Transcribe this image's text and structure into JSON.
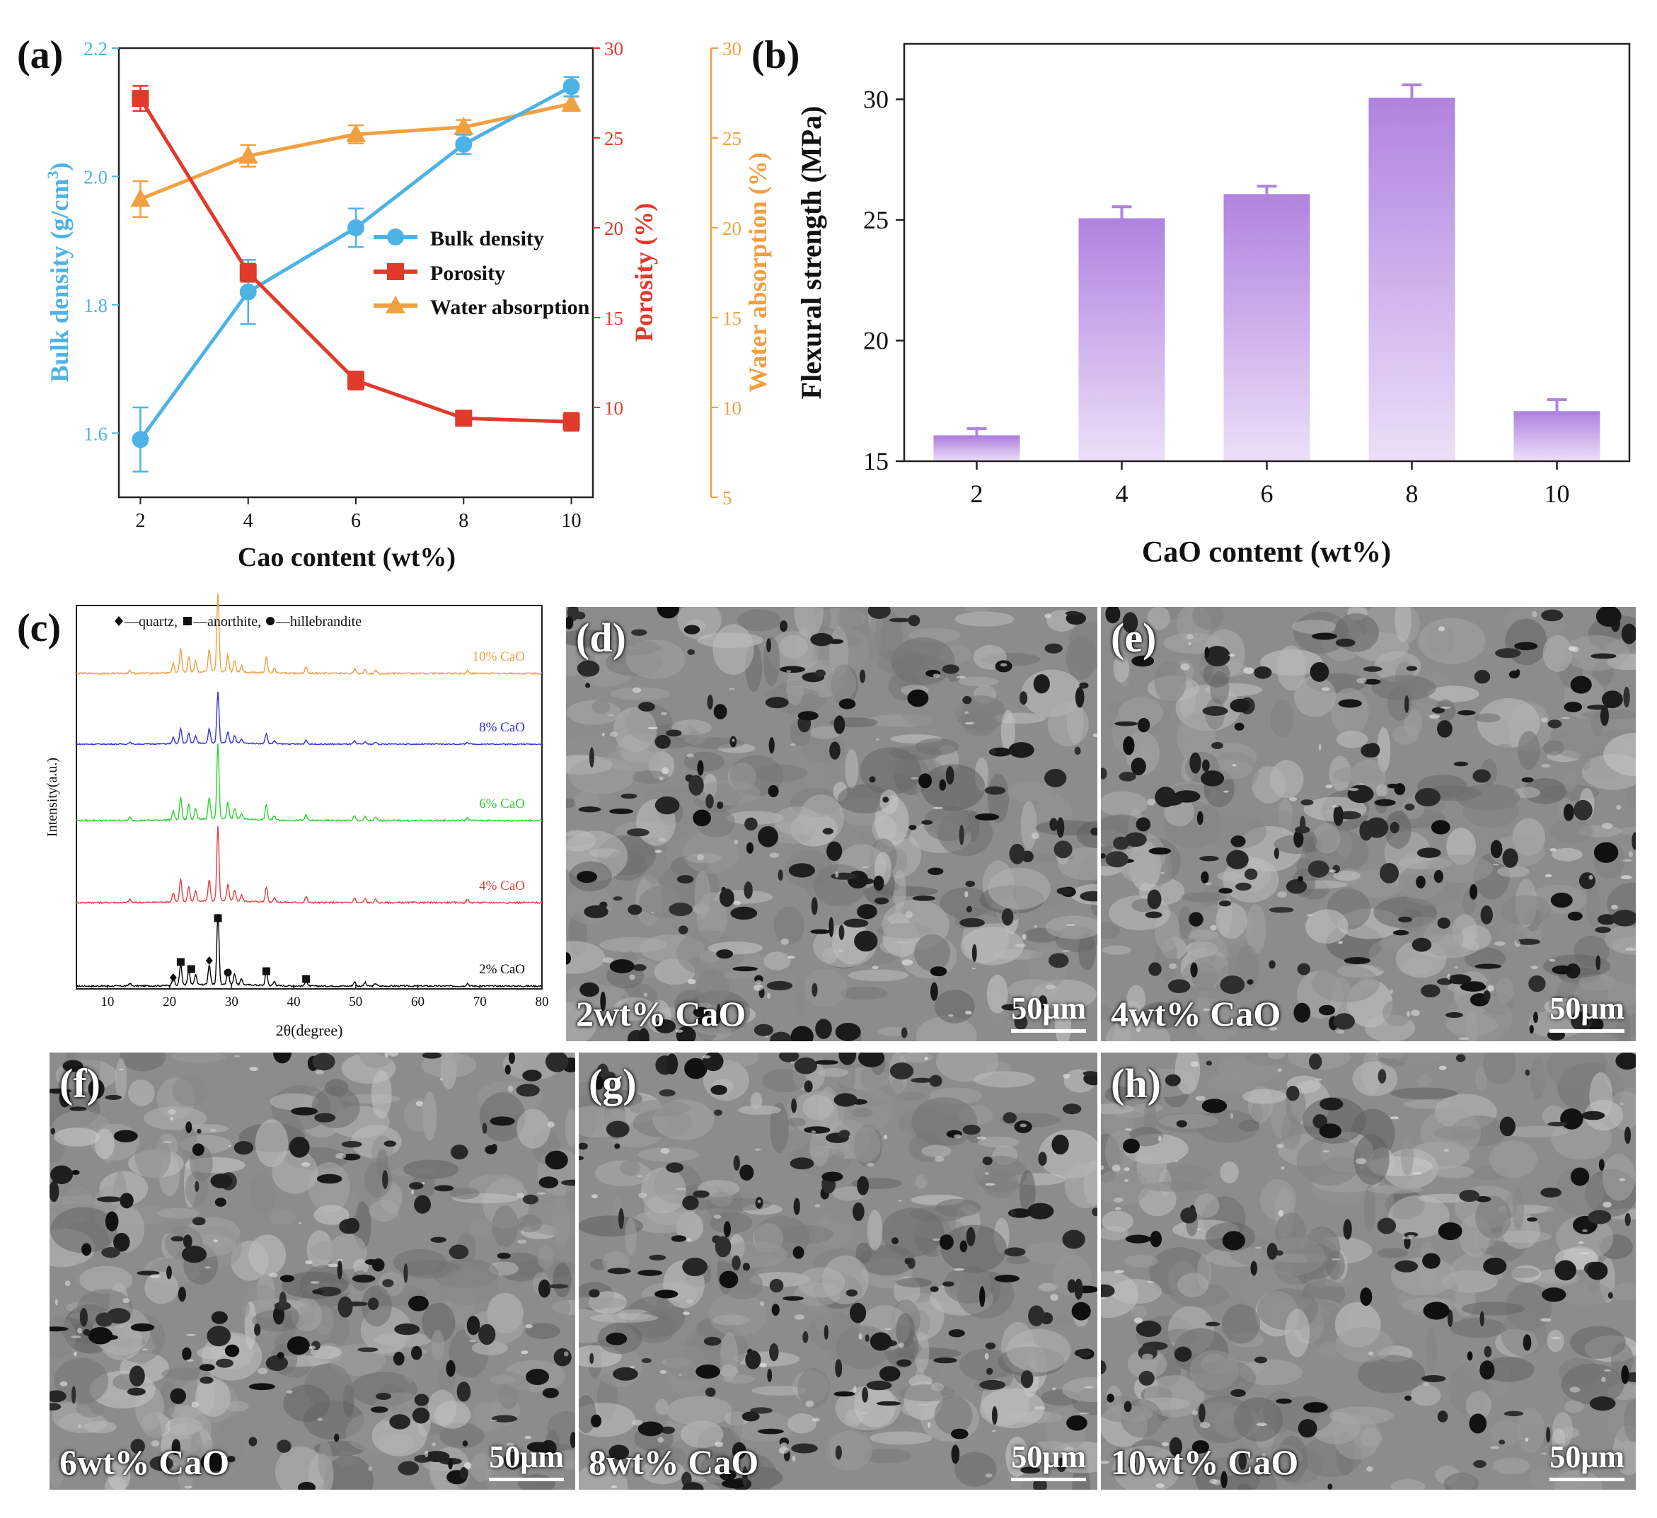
{
  "panel_a": {
    "letter": "(a)",
    "xlabel": "Cao content (wt%)",
    "ylabel_left": "Bulk density (g/cm",
    "ylabel_left_sup": "3",
    "ylabel_left_end": ")",
    "ylabel_right1": "Porosity (%)",
    "ylabel_right2": "Water absorption (%)",
    "legend": [
      "Bulk density",
      "Porosity",
      "Water absorption"
    ],
    "colors": {
      "bulk": "#4db3e6",
      "porosity": "#e03a2a",
      "water": "#f0a040"
    }
  },
  "panel_b": {
    "letter": "(b)",
    "xlabel": "CaO content (wt%)",
    "ylabel": "Flexural strength (MPa)"
  },
  "panel_c": {
    "letter": "(c)",
    "xlabel": "2θ(degree)",
    "ylabel": "Intensity(a.u.)",
    "legend_quartz": "—quartz,",
    "legend_anorthite": "—anorthite,",
    "legend_hillebrandite": "—hillebrandite"
  },
  "sem": [
    {
      "letter": "(d)",
      "label": "2wt% CaO",
      "scale": "50μm"
    },
    {
      "letter": "(e)",
      "label": "4wt% CaO",
      "scale": "50μm"
    },
    {
      "letter": "(f)",
      "label": "6wt% CaO",
      "scale": "50μm"
    },
    {
      "letter": "(g)",
      "label": "8wt% CaO",
      "scale": "50μm"
    },
    {
      "letter": "(h)",
      "label": "10wt% CaO",
      "scale": "50μm"
    }
  ],
  "chart_data": [
    {
      "type": "line",
      "title": "(a)",
      "xlabel": "Cao content (wt%)",
      "x": [
        2,
        4,
        6,
        8,
        10
      ],
      "xticks": [
        2,
        4,
        6,
        8,
        10
      ],
      "xlim": [
        1.6,
        10.4
      ],
      "series": [
        {
          "name": "Bulk density",
          "axis": "left",
          "values": [
            1.59,
            1.82,
            1.92,
            2.05,
            2.14
          ],
          "errors": [
            0.05,
            0.05,
            0.03,
            0.015,
            0.015
          ]
        },
        {
          "name": "Porosity",
          "axis": "right1",
          "values": [
            27.2,
            17.5,
            11.5,
            9.4,
            9.2
          ],
          "errors": [
            0.7,
            0.5,
            0.5,
            0.4,
            0.5
          ]
        },
        {
          "name": "Water absorption",
          "axis": "right2",
          "values": [
            21.6,
            24.0,
            25.2,
            25.6,
            26.9
          ],
          "errors": [
            1.0,
            0.6,
            0.5,
            0.4,
            0.4
          ]
        }
      ],
      "y_left": {
        "label": "Bulk density (g/cm3)",
        "lim": [
          1.5,
          2.2
        ],
        "ticks": [
          1.6,
          1.8,
          2.0,
          2.2
        ],
        "tick_labels": [
          "1.6",
          "1.8",
          "2.0",
          "2.2"
        ]
      },
      "y_right1": {
        "label": "Porosity (%)",
        "lim": [
          5,
          30
        ],
        "ticks": [
          10,
          15,
          20,
          25,
          30
        ],
        "tick_labels": [
          "10",
          "15",
          "20",
          "25",
          "30"
        ]
      },
      "y_right2": {
        "label": "Water absorption (%)",
        "lim": [
          5,
          30
        ],
        "ticks": [
          5,
          10,
          15,
          20,
          25,
          30
        ],
        "tick_labels": [
          "5",
          "10",
          "15",
          "20",
          "25",
          "30"
        ]
      },
      "legend": "center-right"
    },
    {
      "type": "bar",
      "title": "(b)",
      "categories": [
        "2",
        "4",
        "6",
        "8",
        "10"
      ],
      "values": [
        16,
        25,
        26,
        30,
        17
      ],
      "errors": [
        0.35,
        0.55,
        0.4,
        0.6,
        0.55
      ],
      "xlabel": "CaO content (wt%)",
      "ylabel": "Flexural strength (MPa)",
      "ylim": [
        15,
        32.3
      ],
      "yticks": [
        15,
        20,
        25,
        30
      ],
      "color": "#b183e0"
    },
    {
      "type": "line",
      "title": "(c)",
      "xlabel": "2θ(degree)",
      "ylabel": "Intensity(a.u.)",
      "xlim": [
        5,
        80
      ],
      "xticks": [
        10,
        20,
        30,
        40,
        50,
        60,
        70,
        80
      ],
      "series": [
        {
          "name": "2% CaO",
          "color": "#000000"
        },
        {
          "name": "4% CaO",
          "color": "#e04040"
        },
        {
          "name": "6% CaO",
          "color": "#30d030"
        },
        {
          "name": "8% CaO",
          "color": "#3030e0"
        },
        {
          "name": "10% CaO",
          "color": "#f0a040"
        }
      ],
      "peaks": [
        {
          "pos": 13.6,
          "h": 0.04
        },
        {
          "pos": 20.6,
          "h": 0.12
        },
        {
          "pos": 21.8,
          "h": 0.3
        },
        {
          "pos": 23.1,
          "h": 0.2
        },
        {
          "pos": 24.2,
          "h": 0.14
        },
        {
          "pos": 26.4,
          "h": 0.28
        },
        {
          "pos": 27.8,
          "h": 1.0
        },
        {
          "pos": 29.4,
          "h": 0.22
        },
        {
          "pos": 30.5,
          "h": 0.15
        },
        {
          "pos": 31.6,
          "h": 0.08
        },
        {
          "pos": 35.6,
          "h": 0.2
        },
        {
          "pos": 36.9,
          "h": 0.06
        },
        {
          "pos": 42.0,
          "h": 0.08
        },
        {
          "pos": 49.8,
          "h": 0.06
        },
        {
          "pos": 51.5,
          "h": 0.05
        },
        {
          "pos": 53.2,
          "h": 0.04
        },
        {
          "pos": 68.0,
          "h": 0.04
        }
      ],
      "markers": [
        {
          "type": "quartz",
          "pos": 20.6
        },
        {
          "type": "quartz",
          "pos": 26.4
        },
        {
          "type": "anorthite",
          "pos": 21.8
        },
        {
          "type": "anorthite",
          "pos": 23.5
        },
        {
          "type": "anorthite",
          "pos": 27.8
        },
        {
          "type": "anorthite",
          "pos": 35.6
        },
        {
          "type": "anorthite",
          "pos": 42.0
        },
        {
          "type": "hillebrandite",
          "pos": 29.4
        }
      ]
    }
  ]
}
